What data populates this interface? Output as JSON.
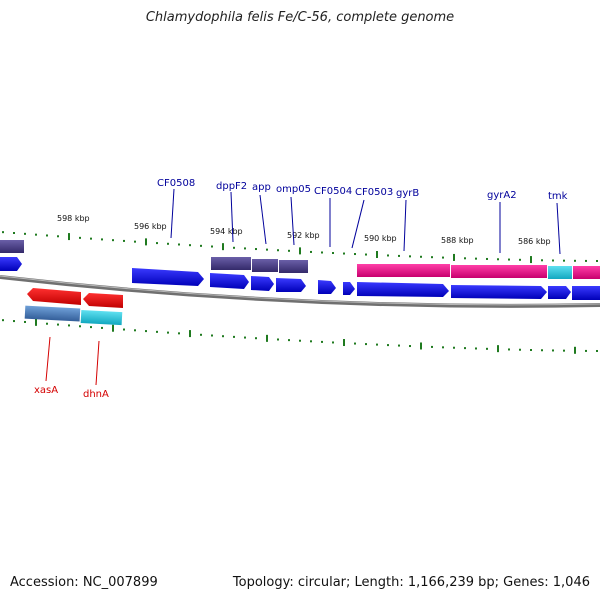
{
  "title": "Chlamydophila felis Fe/C-56, complete genome",
  "footer": {
    "accession": "Accession: NC_007899",
    "summary": "Topology: circular; Length: 1,166,239 bp; Genes: 1,046"
  },
  "scale_labels": [
    "598 kbp",
    "596 kbp",
    "594 kbp",
    "592 kbp",
    "590 kbp",
    "588 kbp",
    "586 kbp"
  ],
  "gene_labels_top": [
    "CF0508",
    "dppF2",
    "app",
    "omp05",
    "CF0504",
    "CF0503",
    "gyrB",
    "gyrA2",
    "tmk"
  ],
  "gene_labels_bottom": [
    "xasA",
    "dhnA"
  ],
  "colors": {
    "label_top": "#00009b",
    "label_bottom": "#d40000",
    "cds_forward": "#0000e0",
    "cds_reverse": "#ee0000",
    "feature_purple": "#4a3f8a",
    "feature_magenta": "#e8158a",
    "feature_cyan": "#22c8dd",
    "feature_steel": "#4a78b8",
    "tick": "#1f7a1f",
    "backbone": "#808080"
  }
}
